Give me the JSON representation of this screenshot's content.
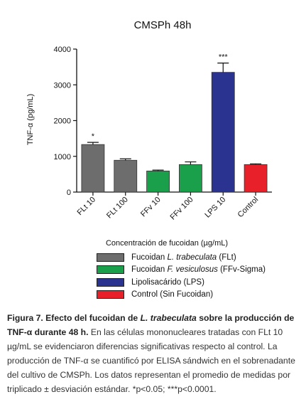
{
  "chart_data": {
    "type": "bar",
    "title": "CMSPh 48h",
    "ylabel": "TNF-α (pg/mL)",
    "xlabel": "Concentración de fucoidan (µg/mL)",
    "ylim": [
      0,
      4000
    ],
    "yticks": [
      "0",
      "1000",
      "2000",
      "3000",
      "4000"
    ],
    "categories": [
      "FLt 10",
      "FLt 100",
      "FFv 10",
      "FFv 100",
      "LPS 10",
      "Control"
    ],
    "values": [
      1330,
      890,
      590,
      770,
      3350,
      770
    ],
    "errors": [
      60,
      40,
      25,
      75,
      260,
      20
    ],
    "colors": [
      "#6d6d6d",
      "#6d6d6d",
      "#1aa04a",
      "#1aa04a",
      "#2b3390",
      "#e8202a"
    ],
    "significance": [
      "*",
      "",
      "",
      "",
      "***",
      ""
    ],
    "legend": [
      {
        "prefix": "Fucoidan ",
        "italic": "L. trabeculata",
        "suffix": " (FLt)",
        "color": "#6d6d6d"
      },
      {
        "prefix": "Fucoidan ",
        "italic": "F. vesiculosus",
        "suffix": " (FFv-Sigma)",
        "color": "#1aa04a"
      },
      {
        "prefix": "Lipolisacárido (LPS)",
        "italic": "",
        "suffix": "",
        "color": "#2b3390"
      },
      {
        "prefix": "Control (Sin Fucoidan)",
        "italic": "",
        "suffix": "",
        "color": "#e8202a"
      }
    ]
  },
  "caption": {
    "bold_1": "Figura 7. Efecto del fucoidan de ",
    "bold_italic": "L. trabeculata",
    "bold_2": " sobre la producción de TNF-α durante 48 h.",
    "body": " En las células mononucleares tratadas con FLt 10 µg/mL se evidenciaron diferencias significativas respecto al control. La producción de TNF-α se cuantificó por ELISA sándwich en el sobrenadante del cultivo de CMSPh. Los datos representan el promedio de medidas por triplicado ± desviación estándar. *p<0.05; ***p<0.0001."
  }
}
